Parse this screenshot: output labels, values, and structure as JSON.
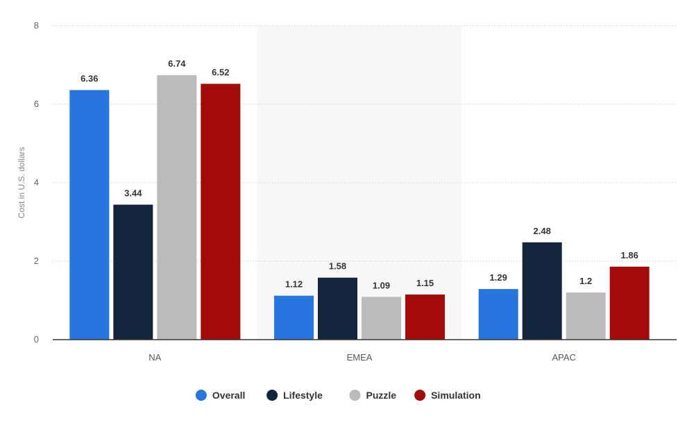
{
  "chart_data": {
    "type": "bar",
    "categories": [
      "NA",
      "EMEA",
      "APAC"
    ],
    "series": [
      {
        "name": "Overall",
        "color": "#2876DD",
        "values": [
          6.36,
          1.12,
          1.29
        ]
      },
      {
        "name": "Lifestyle",
        "color": "#13263E",
        "values": [
          3.44,
          1.58,
          2.48
        ]
      },
      {
        "name": "Puzzle",
        "color": "#BBBBBB",
        "values": [
          6.74,
          1.09,
          1.2
        ]
      },
      {
        "name": "Simulation",
        "color": "#A30A0A",
        "values": [
          6.52,
          1.15,
          1.86
        ]
      }
    ],
    "value_labels": [
      [
        "6.36",
        "1.12",
        "1.29"
      ],
      [
        "3.44",
        "1.58",
        "2.48"
      ],
      [
        "6.74",
        "1.09",
        "1.2"
      ],
      [
        "6.52",
        "1.15",
        "1.86"
      ]
    ],
    "ylabel": "Cost in U.S. dollars",
    "xlabel": "",
    "ylim": [
      0,
      8
    ],
    "yticks": [
      0,
      2,
      4,
      6,
      8
    ],
    "grid": true,
    "legend_position": "bottom-center",
    "highlighted_category": "EMEA",
    "highlight_color": "#F7F7F7"
  }
}
